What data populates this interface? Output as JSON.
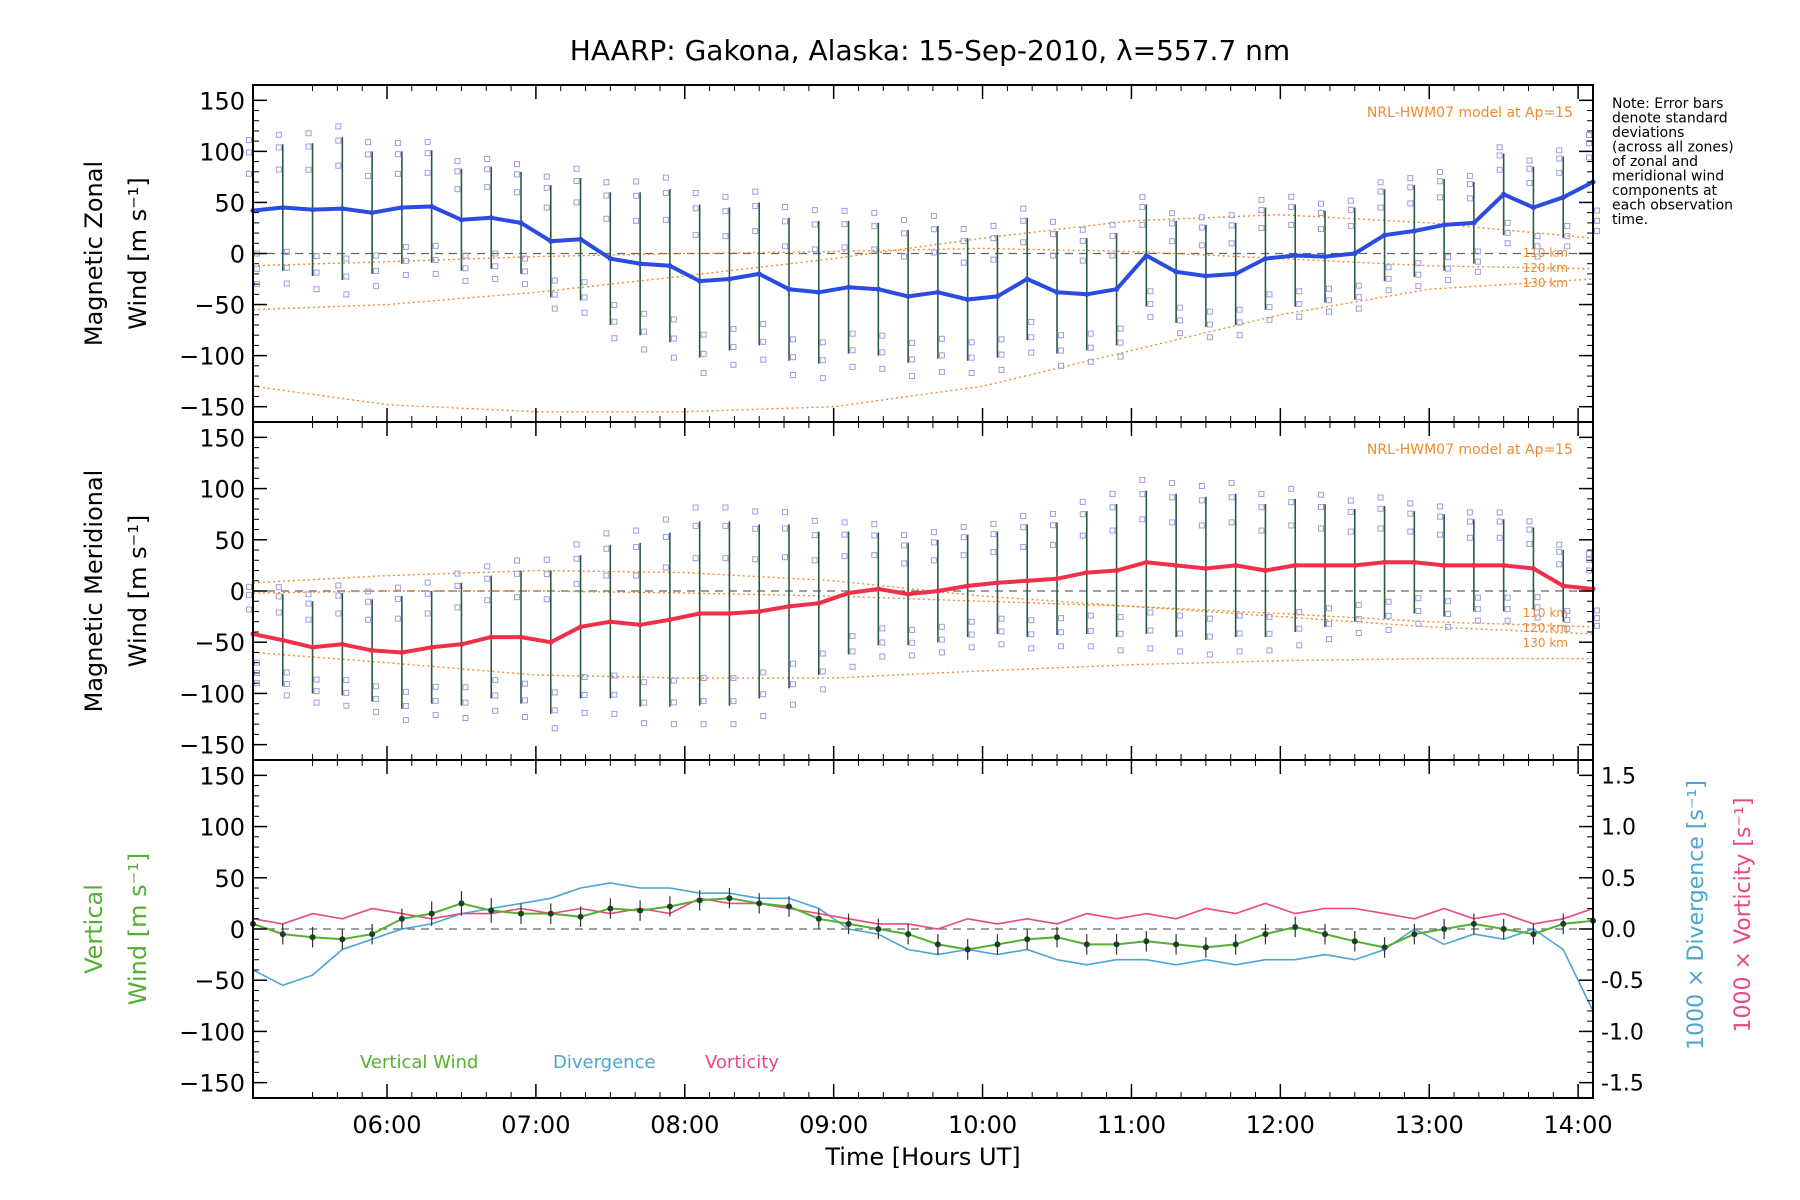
{
  "title": "HAARP: Gakona,  Alaska: 15-Sep-2010, λ=557.7 nm",
  "note_lines": [
    "Note: Error bars",
    "denote standard",
    "deviations",
    "(across all zones)",
    "of zonal and",
    "meridional wind",
    "components at",
    "each observation",
    "time."
  ],
  "x_axis": {
    "label": "Time [Hours UT]",
    "ticks": [
      "06:00",
      "07:00",
      "08:00",
      "09:00",
      "10:00",
      "11:00",
      "12:00",
      "13:00",
      "14:00"
    ],
    "range_hours": [
      5.1,
      14.1
    ]
  },
  "colors": {
    "zonal": "#2b4ce0",
    "meridional": "#f0304a",
    "vertical": "#55b030",
    "divergence": "#4aa5d5",
    "vorticity": "#e84a7a",
    "model": "#f08a30",
    "zone_points": "#9d9de0",
    "errorbar": "#2c5a40"
  },
  "chart_data": [
    {
      "type": "line",
      "panel": "zonal",
      "ylabel": "Magnetic Zonal Wind [m s⁻¹]",
      "ylabel_lines": [
        "Magnetic Zonal",
        "Wind [m s⁻¹]"
      ],
      "ylim": [
        -165,
        165
      ],
      "yticks": [
        150,
        100,
        50,
        0,
        -50,
        -100,
        -150
      ],
      "model_label": "NRL-HWM07 model at Ap=15",
      "model_altitudes": [
        "110 km",
        "120 km",
        "130 km"
      ],
      "series": [
        {
          "name": "zonal",
          "x": [
            5.1,
            5.3,
            5.5,
            5.7,
            5.9,
            6.1,
            6.3,
            6.5,
            6.7,
            6.9,
            7.1,
            7.3,
            7.5,
            7.7,
            7.9,
            8.1,
            8.3,
            8.5,
            8.7,
            8.9,
            9.1,
            9.3,
            9.5,
            9.7,
            9.9,
            10.1,
            10.3,
            10.5,
            10.7,
            10.9,
            11.1,
            11.3,
            11.5,
            11.7,
            11.9,
            12.1,
            12.3,
            12.5,
            12.7,
            12.9,
            13.1,
            13.3,
            13.5,
            13.7,
            13.9,
            14.1
          ],
          "y": [
            42,
            45,
            43,
            44,
            40,
            45,
            46,
            33,
            35,
            30,
            12,
            14,
            -5,
            -10,
            -12,
            -27,
            -25,
            -20,
            -35,
            -38,
            -33,
            -35,
            -42,
            -38,
            -45,
            -42,
            -25,
            -38,
            -40,
            -35,
            -2,
            -18,
            -22,
            -20,
            -5,
            -2,
            -3,
            0,
            18,
            22,
            28,
            30,
            58,
            45,
            55,
            70
          ]
        }
      ],
      "errorbar_sd": [
        60,
        62,
        65,
        70,
        60,
        55,
        55,
        50,
        50,
        50,
        55,
        60,
        65,
        70,
        75,
        75,
        70,
        70,
        70,
        70,
        65,
        65,
        65,
        65,
        60,
        60,
        60,
        60,
        55,
        55,
        50,
        50,
        50,
        50,
        50,
        50,
        45,
        45,
        45,
        45,
        45,
        40,
        40,
        40,
        40,
        40
      ],
      "model_curves": [
        {
          "name": "110 km",
          "x": [
            5.1,
            6,
            7,
            8,
            9,
            10,
            11,
            12,
            13,
            14.1
          ],
          "y": [
            -130,
            -148,
            -155,
            -155,
            -150,
            -130,
            -95,
            -60,
            -35,
            -25
          ]
        },
        {
          "name": "120 km",
          "x": [
            5.1,
            6,
            7,
            8,
            9,
            10,
            11,
            12,
            13,
            14.1
          ],
          "y": [
            -55,
            -50,
            -38,
            -22,
            -5,
            15,
            32,
            38,
            30,
            15
          ]
        },
        {
          "name": "130 km",
          "x": [
            5.1,
            6,
            7,
            8,
            9,
            10,
            11,
            12,
            13,
            14.1
          ],
          "y": [
            -12,
            -8,
            -3,
            0,
            2,
            5,
            2,
            -5,
            -12,
            -15
          ]
        }
      ]
    },
    {
      "type": "line",
      "panel": "meridional",
      "ylabel": "Magnetic Meridional Wind [m s⁻¹]",
      "ylabel_lines": [
        "Magnetic Meridional",
        "Wind [m s⁻¹]"
      ],
      "ylim": [
        -165,
        165
      ],
      "yticks": [
        150,
        100,
        50,
        0,
        -50,
        -100,
        -150
      ],
      "model_label": "NRL-HWM07 model at Ap=15",
      "model_altitudes": [
        "110 km",
        "120 km",
        "130 km"
      ],
      "series": [
        {
          "name": "meridional",
          "x": [
            5.1,
            5.3,
            5.5,
            5.7,
            5.9,
            6.1,
            6.3,
            6.5,
            6.7,
            6.9,
            7.1,
            7.3,
            7.5,
            7.7,
            7.9,
            8.1,
            8.3,
            8.5,
            8.7,
            8.9,
            9.1,
            9.3,
            9.5,
            9.7,
            9.9,
            10.1,
            10.3,
            10.5,
            10.7,
            10.9,
            11.1,
            11.3,
            11.5,
            11.7,
            11.9,
            12.1,
            12.3,
            12.5,
            12.7,
            12.9,
            13.1,
            13.3,
            13.5,
            13.7,
            13.9,
            14.1
          ],
          "y": [
            -42,
            -48,
            -55,
            -52,
            -58,
            -60,
            -55,
            -52,
            -45,
            -45,
            -50,
            -35,
            -30,
            -33,
            -28,
            -22,
            -22,
            -20,
            -15,
            -12,
            -2,
            2,
            -3,
            0,
            5,
            8,
            10,
            12,
            18,
            20,
            28,
            25,
            22,
            25,
            20,
            25,
            25,
            25,
            28,
            28,
            25,
            25,
            25,
            22,
            5,
            2
          ]
        }
      ],
      "errorbar_sd": [
        40,
        45,
        45,
        50,
        50,
        55,
        55,
        60,
        60,
        65,
        70,
        70,
        75,
        80,
        85,
        90,
        90,
        85,
        80,
        70,
        60,
        55,
        50,
        50,
        50,
        50,
        55,
        55,
        60,
        65,
        70,
        70,
        70,
        70,
        65,
        65,
        60,
        55,
        55,
        50,
        50,
        45,
        45,
        40,
        35,
        30
      ],
      "model_curves": [
        {
          "name": "110 km",
          "x": [
            5.1,
            6,
            7,
            8,
            9,
            10,
            11,
            12,
            13,
            14.1
          ],
          "y": [
            -60,
            -70,
            -82,
            -85,
            -85,
            -78,
            -72,
            -68,
            -66,
            -66
          ]
        },
        {
          "name": "120 km",
          "x": [
            5.1,
            6,
            7,
            8,
            9,
            10,
            11,
            12,
            13,
            14.1
          ],
          "y": [
            8,
            15,
            20,
            18,
            10,
            -5,
            -15,
            -25,
            -35,
            -42
          ]
        },
        {
          "name": "130 km",
          "x": [
            5.1,
            6,
            7,
            8,
            9,
            10,
            11,
            12,
            13,
            14.1
          ],
          "y": [
            -2,
            0,
            0,
            -2,
            -5,
            -10,
            -15,
            -22,
            -30,
            -35
          ]
        }
      ]
    },
    {
      "type": "line",
      "panel": "vertical",
      "ylabel_lines": [
        "Vertical",
        "Wind [m s⁻¹]"
      ],
      "ylim": [
        -165,
        165
      ],
      "yticks": [
        150,
        100,
        50,
        0,
        -50,
        -100,
        -150
      ],
      "y2_ticks": [
        "1.5",
        "1.0",
        "0.5",
        "0.0",
        "-0.5",
        "-1.0",
        "-1.5"
      ],
      "y2_label_divergence": "1000 × Divergence [s⁻¹]",
      "y2_label_vorticity": "1000 × Vorticity [s⁻¹]",
      "legend": [
        "Vertical Wind",
        "Divergence",
        "Vorticity"
      ],
      "series": [
        {
          "name": "Vertical Wind",
          "x": [
            5.1,
            5.3,
            5.5,
            5.7,
            5.9,
            6.1,
            6.3,
            6.5,
            6.7,
            6.9,
            7.1,
            7.3,
            7.5,
            7.7,
            7.9,
            8.1,
            8.3,
            8.5,
            8.7,
            8.9,
            9.1,
            9.3,
            9.5,
            9.7,
            9.9,
            10.1,
            10.3,
            10.5,
            10.7,
            10.9,
            11.1,
            11.3,
            11.5,
            11.7,
            11.9,
            12.1,
            12.3,
            12.5,
            12.7,
            12.9,
            13.1,
            13.3,
            13.5,
            13.7,
            13.9,
            14.1
          ],
          "y": [
            5,
            -5,
            -8,
            -10,
            -5,
            10,
            15,
            25,
            18,
            15,
            15,
            12,
            20,
            18,
            22,
            28,
            30,
            25,
            22,
            10,
            5,
            0,
            -5,
            -15,
            -20,
            -15,
            -10,
            -8,
            -15,
            -15,
            -12,
            -15,
            -18,
            -15,
            -5,
            2,
            -5,
            -12,
            -18,
            -5,
            0,
            5,
            0,
            -5,
            5,
            8
          ],
          "sd": [
            10,
            10,
            10,
            10,
            10,
            10,
            12,
            12,
            12,
            10,
            10,
            10,
            10,
            10,
            10,
            10,
            10,
            10,
            10,
            10,
            10,
            10,
            10,
            10,
            10,
            10,
            10,
            10,
            10,
            10,
            10,
            10,
            10,
            10,
            10,
            10,
            10,
            10,
            10,
            10,
            10,
            10,
            10,
            10,
            10,
            10
          ]
        },
        {
          "name": "Divergence",
          "x": [
            5.1,
            5.3,
            5.5,
            5.7,
            5.9,
            6.1,
            6.3,
            6.5,
            6.7,
            6.9,
            7.1,
            7.3,
            7.5,
            7.7,
            7.9,
            8.1,
            8.3,
            8.5,
            8.7,
            8.9,
            9.1,
            9.3,
            9.5,
            9.7,
            9.9,
            10.1,
            10.3,
            10.5,
            10.7,
            10.9,
            11.1,
            11.3,
            11.5,
            11.7,
            11.9,
            12.1,
            12.3,
            12.5,
            12.7,
            12.9,
            13.1,
            13.3,
            13.5,
            13.7,
            13.9,
            14.1
          ],
          "y": [
            -0.4,
            -0.55,
            -0.45,
            -0.2,
            -0.1,
            0.0,
            0.05,
            0.15,
            0.2,
            0.25,
            0.3,
            0.4,
            0.45,
            0.4,
            0.4,
            0.35,
            0.35,
            0.3,
            0.3,
            0.2,
            0.0,
            -0.05,
            -0.2,
            -0.25,
            -0.2,
            -0.25,
            -0.2,
            -0.3,
            -0.35,
            -0.3,
            -0.3,
            -0.35,
            -0.3,
            -0.35,
            -0.3,
            -0.3,
            -0.25,
            -0.3,
            -0.2,
            0.0,
            -0.15,
            -0.05,
            -0.1,
            0.0,
            -0.2,
            -0.8
          ]
        },
        {
          "name": "Vorticity",
          "x": [
            5.1,
            5.3,
            5.5,
            5.7,
            5.9,
            6.1,
            6.3,
            6.5,
            6.7,
            6.9,
            7.1,
            7.3,
            7.5,
            7.7,
            7.9,
            8.1,
            8.3,
            8.5,
            8.7,
            8.9,
            9.1,
            9.3,
            9.5,
            9.7,
            9.9,
            10.1,
            10.3,
            10.5,
            10.7,
            10.9,
            11.1,
            11.3,
            11.5,
            11.7,
            11.9,
            12.1,
            12.3,
            12.5,
            12.7,
            12.9,
            13.1,
            13.3,
            13.5,
            13.7,
            13.9,
            14.1
          ],
          "y": [
            0.1,
            0.05,
            0.15,
            0.1,
            0.2,
            0.15,
            0.1,
            0.15,
            0.15,
            0.2,
            0.15,
            0.2,
            0.15,
            0.2,
            0.15,
            0.3,
            0.25,
            0.25,
            0.2,
            0.15,
            0.1,
            0.05,
            0.05,
            0.0,
            0.1,
            0.05,
            0.1,
            0.05,
            0.15,
            0.1,
            0.15,
            0.1,
            0.2,
            0.15,
            0.25,
            0.15,
            0.2,
            0.2,
            0.15,
            0.1,
            0.2,
            0.1,
            0.15,
            0.05,
            0.1,
            0.2
          ]
        }
      ]
    }
  ]
}
